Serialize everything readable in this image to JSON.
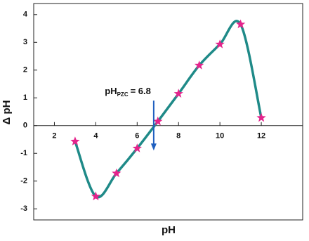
{
  "chart_data": {
    "type": "line",
    "x_label": "pH",
    "y_label": "Δ pH",
    "x": [
      3,
      4,
      5,
      6,
      7,
      8,
      9,
      10,
      11,
      12
    ],
    "series": [
      {
        "color": "#1f8a88",
        "marker_color": "#e4248c",
        "values": [
          -0.57,
          -2.55,
          -1.72,
          -0.82,
          0.15,
          1.15,
          2.17,
          2.93,
          3.65,
          0.28
        ]
      }
    ],
    "xlim": [
      1,
      14
    ],
    "ylim": [
      -3.4,
      4.4
    ],
    "xticks": [
      2,
      4,
      6,
      8,
      10,
      12
    ],
    "yticks": [
      -3,
      -2,
      -1,
      0,
      1,
      2,
      3,
      4
    ],
    "annotation": {
      "text": "pH",
      "subscript": "PZC",
      "suffix": "= 6.8",
      "x": 6.8,
      "arrow_y": [
        0.9,
        -0.9
      ],
      "color": "#1f5fbf"
    }
  }
}
